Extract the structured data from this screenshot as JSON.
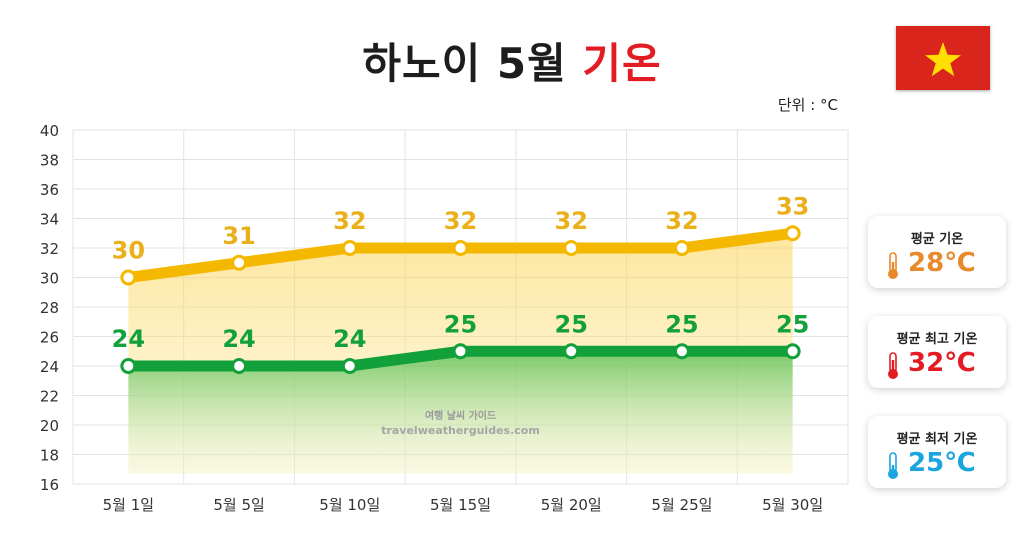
{
  "title": {
    "main": "하노이 5월",
    "accent": "기온"
  },
  "unit_label": "단위 : °C",
  "watermark": {
    "line1": "여행 날씨 가이드",
    "line2": "travelweatherguides.com"
  },
  "flag": {
    "icon": "vietnam-flag-icon",
    "colors": {
      "field": "#da251d",
      "star": "#ffde00"
    }
  },
  "cards": [
    {
      "label": "평균 기온",
      "value": "28℃",
      "color": "#e8892b",
      "icon": "thermometer-orange-icon"
    },
    {
      "label": "평균 최고 기온",
      "value": "32℃",
      "color": "#e31b23",
      "icon": "thermometer-red-icon"
    },
    {
      "label": "평균 최저 기온",
      "value": "25℃",
      "color": "#1aa5e0",
      "icon": "thermometer-blue-icon"
    }
  ],
  "chart_data": {
    "type": "line",
    "categories": [
      "5월 1일",
      "5월 5일",
      "5월 10일",
      "5월 15일",
      "5월 20일",
      "5월 25일",
      "5월 30일"
    ],
    "series": [
      {
        "values": [
          30,
          31,
          32,
          32,
          32,
          32,
          33
        ],
        "color": "#f5b800",
        "label_color": "#e9b01a"
      },
      {
        "values": [
          24,
          24,
          24,
          25,
          25,
          25,
          25
        ],
        "color": "#12a03a",
        "label_color": "#12a03a"
      }
    ],
    "ylim": [
      16,
      40
    ],
    "yticks": [
      "16",
      "18",
      "20",
      "22",
      "24",
      "26",
      "28",
      "30",
      "32",
      "34",
      "36",
      "38",
      "40"
    ],
    "grid": true,
    "unit": "°C"
  }
}
